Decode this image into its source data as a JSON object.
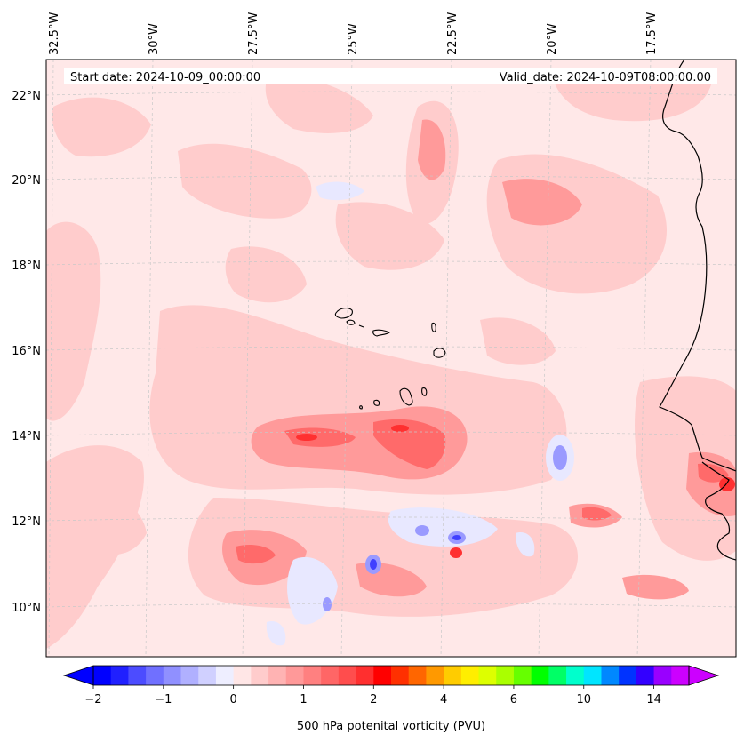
{
  "header": {
    "start_date": "Start date: 2024-10-09_00:00:00",
    "valid_date": "Valid_date: 2024-10-09T08:00:00.00"
  },
  "longitude_labels": [
    "32.5°W",
    "30°W",
    "27.5°W",
    "25°W",
    "22.5°W",
    "20°W",
    "17.5°W"
  ],
  "latitude_labels": [
    "22°N",
    "20°N",
    "18°N",
    "16°N",
    "14°N",
    "12°N",
    "10°N"
  ],
  "colorbar": {
    "label": "500 hPa potenital vorticity (PVU)",
    "ticks": [
      "−2",
      "−1",
      "0",
      "1",
      "2",
      "4",
      "6",
      "10",
      "14"
    ],
    "colors": [
      "#0000ff",
      "#2020ff",
      "#4c4cff",
      "#7070ff",
      "#9090ff",
      "#b0b0ff",
      "#d0d0ff",
      "#eeeeff",
      "#ffe6e6",
      "#ffcccc",
      "#ffb3b3",
      "#ff9999",
      "#ff8080",
      "#ff6666",
      "#ff4d4d",
      "#ff2f2f",
      "#ff0000",
      "#ff3000",
      "#ff6600",
      "#ff9900",
      "#ffcc00",
      "#ffee00",
      "#ddff00",
      "#aaff00",
      "#66ff00",
      "#00ff00",
      "#00ff66",
      "#00ffcc",
      "#00e5ff",
      "#0088ff",
      "#0033ff",
      "#3300ff",
      "#9900ff",
      "#cc00ff"
    ]
  },
  "map_colors": {
    "background": "#ffe8e8",
    "light_red": "#ffcccc",
    "mid_red": "#ff9a9a",
    "strong_red": "#ff6a6a",
    "deep_red": "#ff3030",
    "light_blue": "#e8e8ff",
    "mid_blue": "#9a9aff",
    "deep_blue": "#4040ff",
    "coast": "#000000",
    "grid": "#bbbbbb"
  }
}
